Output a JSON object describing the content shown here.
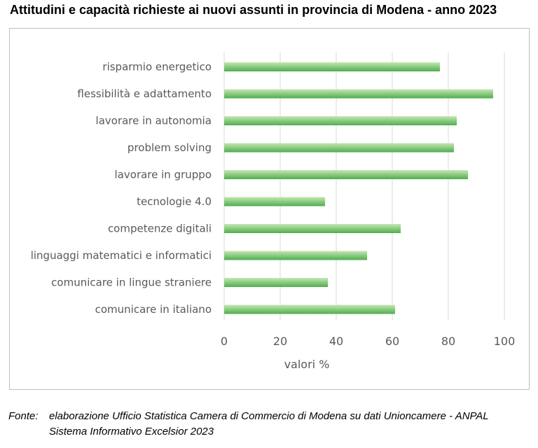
{
  "title": "Attitudini e capacità richieste ai nuovi assunti in provincia di Modena - anno 2023",
  "source": {
    "label": "Fonte:",
    "line1": "elaborazione Ufficio Statistica Camera di Commercio di Modena su dati Unioncamere - ANPAL",
    "line2": "Sistema Informativo Excelsior 2023"
  },
  "colors": {
    "bar_light": "#c6e7b4",
    "bar_dark": "#5bb85b",
    "grid": "#d9d9d9",
    "text": "#595959"
  },
  "chart_data": {
    "type": "bar",
    "orientation": "horizontal",
    "categories": [
      "risparmio energetico",
      "flessibilità e adattamento",
      "lavorare in autonomia",
      "problem solving",
      "lavorare in gruppo",
      "tecnologie 4.0",
      "competenze digitali",
      "linguaggi matematici e informatici",
      "comunicare in lingue straniere",
      "comunicare in italiano"
    ],
    "values": [
      77,
      96,
      83,
      82,
      87,
      36,
      63,
      51,
      37,
      61
    ],
    "xlabel": "valori %",
    "ylabel": "",
    "xlim": [
      0,
      100
    ],
    "xticks": [
      0,
      20,
      40,
      60,
      80,
      100
    ],
    "grid": "vertical",
    "legend": "none"
  }
}
